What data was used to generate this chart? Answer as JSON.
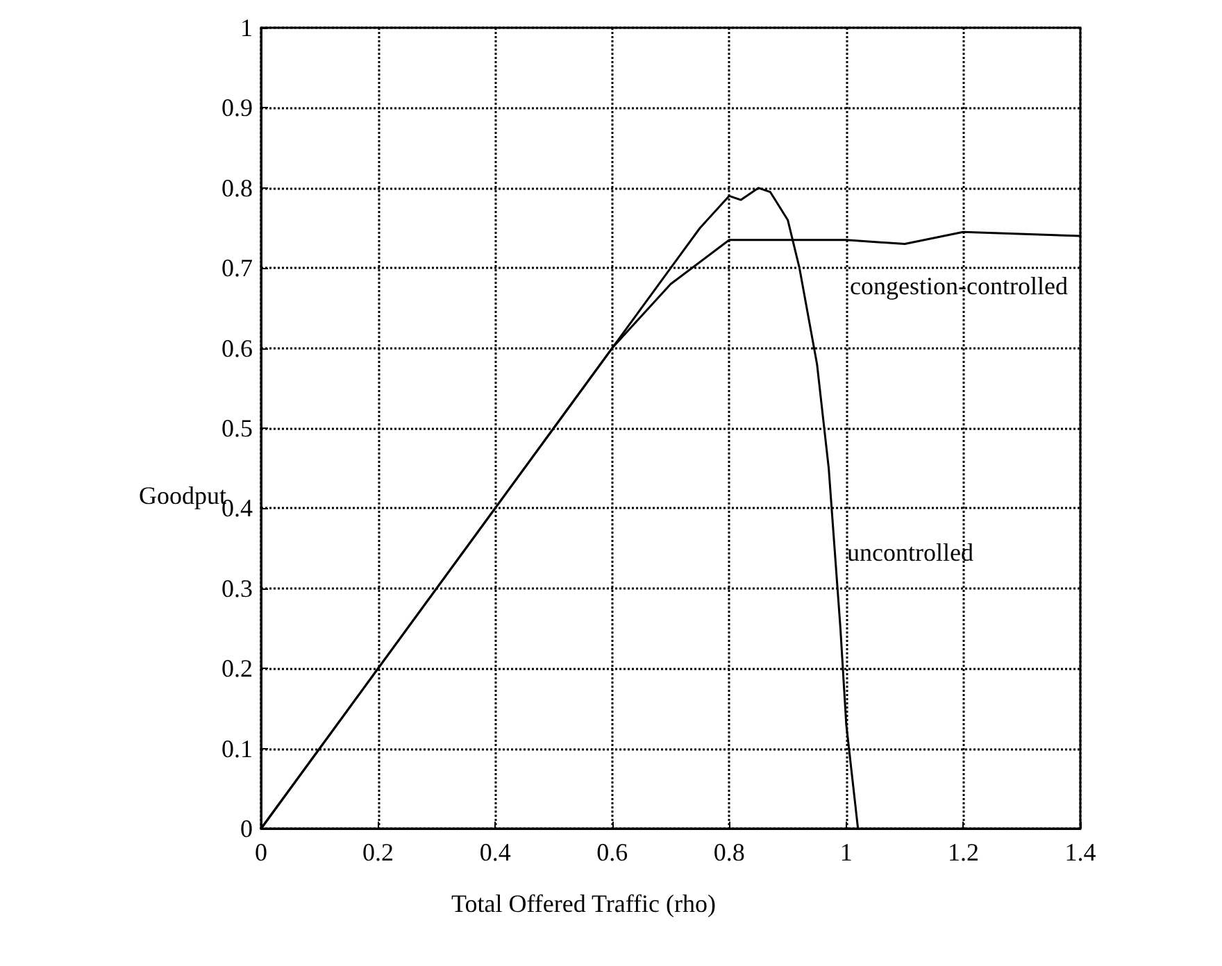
{
  "chart_data": {
    "type": "line",
    "xlabel": "Total Offered Traffic (rho)",
    "ylabel": "Goodput",
    "series": [
      {
        "name": "uncontrolled",
        "color": "#000000",
        "x": [
          0,
          0.2,
          0.4,
          0.5,
          0.6,
          0.65,
          0.7,
          0.75,
          0.8,
          0.82,
          0.85,
          0.87,
          0.9,
          0.92,
          0.95,
          0.97,
          0.99,
          1.0,
          1.02
        ],
        "values": [
          0,
          0.2,
          0.4,
          0.5,
          0.6,
          0.65,
          0.7,
          0.75,
          0.79,
          0.785,
          0.8,
          0.795,
          0.76,
          0.7,
          0.58,
          0.45,
          0.25,
          0.13,
          0
        ]
      },
      {
        "name": "congestion-controlled",
        "color": "#000000",
        "x": [
          0,
          0.6,
          0.7,
          0.8,
          1.0,
          1.1,
          1.2,
          1.4
        ],
        "values": [
          0,
          0.6,
          0.68,
          0.735,
          0.735,
          0.73,
          0.745,
          0.74
        ]
      }
    ],
    "xlim": [
      0,
      1.4
    ],
    "xticks": [
      0,
      0.2,
      0.4,
      0.6,
      0.8,
      1,
      1.2,
      1.4
    ],
    "ylim": [
      0,
      1
    ],
    "yticks": [
      0,
      0.1,
      0.2,
      0.3,
      0.4,
      0.5,
      0.6,
      0.7,
      0.8,
      0.9,
      1
    ],
    "grid": true,
    "legend": false,
    "marker": "none",
    "line_style": "solid"
  }
}
